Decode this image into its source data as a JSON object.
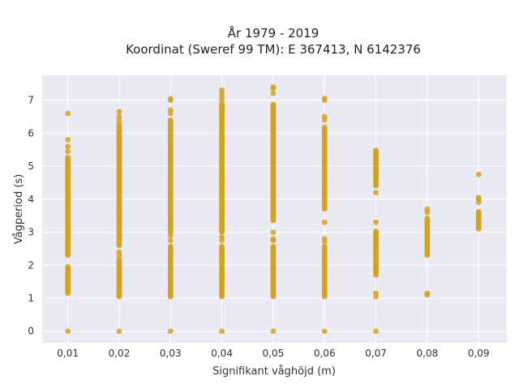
{
  "chart_data": {
    "type": "scatter",
    "title": "År 1979 - 2019",
    "subtitle": "Koordinat (Sweref 99 TM): E 367413, N 6142376",
    "xlabel": "Signifikant våghöjd (m)",
    "ylabel": "Vågperiod (s)",
    "xlim": [
      0.005,
      0.0955
    ],
    "ylim": [
      -0.35,
      7.75
    ],
    "grid": true,
    "marker_color": "#D4A21F",
    "background": "#EAEAF2",
    "x_ticks": [
      {
        "value": 0.01,
        "label": "0,01"
      },
      {
        "value": 0.02,
        "label": "0,02"
      },
      {
        "value": 0.03,
        "label": "0,03"
      },
      {
        "value": 0.04,
        "label": "0,04"
      },
      {
        "value": 0.05,
        "label": "0,05"
      },
      {
        "value": 0.06,
        "label": "0,06"
      },
      {
        "value": 0.07,
        "label": "0,07"
      },
      {
        "value": 0.08,
        "label": "0,08"
      },
      {
        "value": 0.09,
        "label": "0,09"
      }
    ],
    "y_ticks": [
      {
        "value": 0,
        "label": "0"
      },
      {
        "value": 1,
        "label": "1"
      },
      {
        "value": 2,
        "label": "2"
      },
      {
        "value": 3,
        "label": "3"
      },
      {
        "value": 4,
        "label": "4"
      },
      {
        "value": 5,
        "label": "5"
      },
      {
        "value": 6,
        "label": "6"
      },
      {
        "value": 7,
        "label": "7"
      }
    ],
    "columns": [
      {
        "x": 0.01,
        "points": [
          0
        ],
        "ranges": [
          [
            1.15,
            1.95
          ],
          [
            2.3,
            4.1
          ],
          [
            4.15,
            5.3
          ]
        ],
        "singles": [
          1.25,
          1.6,
          1.9,
          5.45,
          5.6,
          5.8,
          6.6
        ]
      },
      {
        "x": 0.02,
        "points": [
          0
        ],
        "ranges": [
          [
            1.05,
            2.2
          ],
          [
            2.6,
            6.3
          ]
        ],
        "singles": [
          2.3,
          2.4,
          6.4,
          6.5,
          6.65
        ]
      },
      {
        "x": 0.03,
        "points": [
          0
        ],
        "ranges": [
          [
            1.05,
            2.6
          ],
          [
            3.0,
            6.4
          ]
        ],
        "singles": [
          2.75,
          2.9,
          6.6,
          6.7,
          7.0,
          7.05
        ]
      },
      {
        "x": 0.04,
        "points": [
          0
        ],
        "ranges": [
          [
            1.05,
            2.6
          ],
          [
            3.0,
            6.9
          ]
        ],
        "singles": [
          2.75,
          2.85,
          7.0,
          7.1,
          7.2,
          7.3
        ]
      },
      {
        "x": 0.05,
        "points": [
          0
        ],
        "ranges": [
          [
            1.05,
            2.6
          ],
          [
            3.35,
            6.9
          ]
        ],
        "singles": [
          2.75,
          2.8,
          3.0,
          7.2,
          7.35,
          7.4
        ]
      },
      {
        "x": 0.06,
        "points": [
          0
        ],
        "ranges": [
          [
            1.05,
            2.6
          ],
          [
            3.7,
            6.2
          ]
        ],
        "singles": [
          2.7,
          2.8,
          3.3,
          6.4,
          6.5,
          7.0,
          7.05
        ]
      },
      {
        "x": 0.07,
        "points": [
          0,
          1.05,
          1.15,
          1.7,
          3.3,
          4.2
        ],
        "ranges": [
          [
            1.75,
            3.05
          ],
          [
            4.4,
            5.5
          ]
        ],
        "singles": []
      },
      {
        "x": 0.08,
        "points": [
          1.1,
          1.15
        ],
        "ranges": [
          [
            2.3,
            3.45
          ]
        ],
        "singles": [
          3.6,
          3.7
        ]
      },
      {
        "x": 0.09,
        "points": [
          4.75
        ],
        "ranges": [
          [
            3.1,
            3.65
          ]
        ],
        "singles": [
          3.9,
          4.0,
          4.05
        ]
      }
    ]
  }
}
